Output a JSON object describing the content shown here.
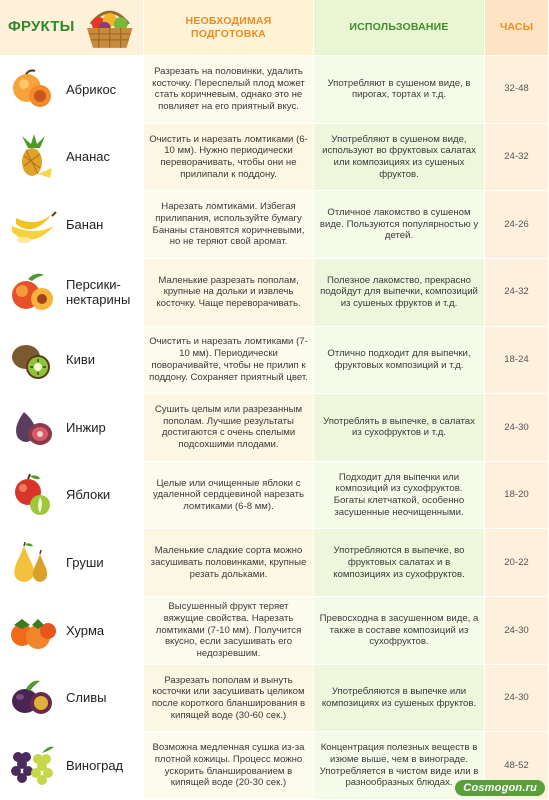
{
  "header": {
    "fruits": "ФРУКТЫ",
    "preparation": "НЕОБХОДИМАЯ ПОДГОТОВКА",
    "usage": "ИСПОЛЬЗОВАНИЕ",
    "hours": "ЧАСЫ"
  },
  "rows": [
    {
      "name": "Абрикос",
      "icon": "apricot-icon",
      "prep": "Разрезать на половинки, удалить косточку. Переспелый плод может стать коричневым, однако это не повлияет на его приятный вкус.",
      "use": "Употребляют в сушеном виде, в пирогах, тортах и т.д.",
      "hours": "32-48"
    },
    {
      "name": "Ананас",
      "icon": "pineapple-icon",
      "prep": "Очистить и нарезать ломтиками (6-10 мм). Нужно периодически переворачивать, чтобы они не прилипали к поддону.",
      "use": "Употребляют в сушеном виде, используют во фруктовых салатах или композициях из сушеных фруктов.",
      "hours": "24-32"
    },
    {
      "name": "Банан",
      "icon": "banana-icon",
      "prep": "Нарезать ломтиками. Избегая прилипания, используйте бумагу Бананы становятся коричневыми, но не теряют свой аромат.",
      "use": "Отличное лакомство в сушеном виде. Пользуются популярностью у детей.",
      "hours": "24-26"
    },
    {
      "name": "Персики-нектарины",
      "icon": "peach-icon",
      "prep": "Маленькие разрезать пополам, крупные на дольки и извлечь косточку. Чаще переворачивать.",
      "use": "Полезное лакомство, прекрасно подойдут для выпечки, композиций из сушеных фруктов и т.д.",
      "hours": "24-32"
    },
    {
      "name": "Киви",
      "icon": "kiwi-icon",
      "prep": "Очистить и нарезать ломтиками (7-10 мм). Периодически поворачивайте, чтобы не прилип к поддону. Сохраняет приятный цвет.",
      "use": "Отлично подходит для выпечки, фруктовых композиций и т.д.",
      "hours": "18-24"
    },
    {
      "name": "Инжир",
      "icon": "fig-icon",
      "prep": "Сушить целым или разрезанным пополам. Лучшие результаты достигаются с очень спелыми подсохшими плодами.",
      "use": "Употреблять в выпечке, в салатах из сухофруктов и т.д.",
      "hours": "24-30"
    },
    {
      "name": "Яблоки",
      "icon": "apple-icon",
      "prep": "Целые или очищенные яблоки с удаленной сердцевиной нарезать ломтиками (6-8 мм).",
      "use": "Подходит для выпечки или композиций из сухофруктов. Богаты клетчаткой, особенно засушенные неочищенными.",
      "hours": "18-20"
    },
    {
      "name": "Груши",
      "icon": "pear-icon",
      "prep": "Маленькие сладкие сорта можно засушивать половинками, крупные резать дольками.",
      "use": "Употребляются в выпечке, во фруктовых салатах и в композициях из сухофруктов.",
      "hours": "20-22"
    },
    {
      "name": "Хурма",
      "icon": "persimmon-icon",
      "prep": "Высушенный фрукт теряет вяжущие свойства. Нарезать ломтиками (7-10 мм). Получится вкусно, если засушивать его недозревшим.",
      "use": "Превосходна в засушенном виде, а также в составе композиций из сухофруктов.",
      "hours": "24-30"
    },
    {
      "name": "Сливы",
      "icon": "plum-icon",
      "prep": "Разрезать пополам и вынуть косточки или засушивать целиком после короткого бланширования в кипящей воде (30-60 сек.)",
      "use": "Употребляются в выпечке или композициях из сушеных фруктов.",
      "hours": "24-30"
    },
    {
      "name": "Виноград",
      "icon": "grapes-icon",
      "prep": "Возможна медленная сушка из-за плотной кожицы. Процесс можно ускорить бланшированием в кипящей воде (20-30 сек.)",
      "use": "Концентрация полезных веществ в изюме выше, чем в винограде. Употребляется в чистом виде или в разнообразных блюдах.",
      "hours": "48-52"
    }
  ],
  "watermark": "Cosmogon.ru",
  "colors": {
    "header_green": "#2f8a2b",
    "header_orange": "#f08a1f"
  }
}
